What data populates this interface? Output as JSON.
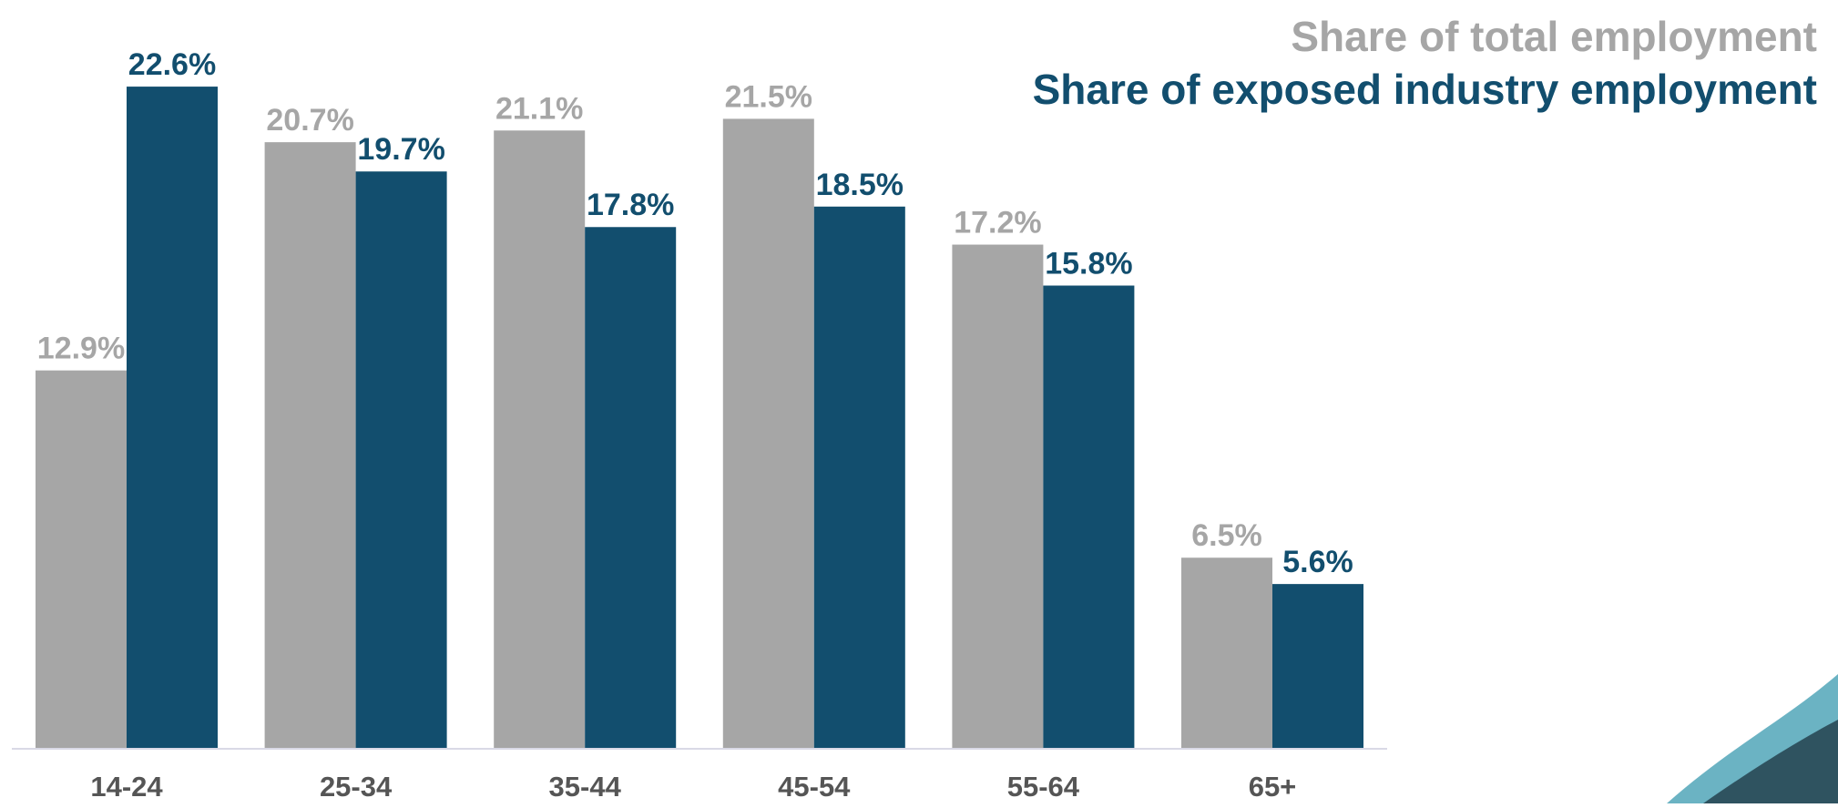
{
  "chart_data": {
    "type": "bar",
    "categories": [
      "14-24",
      "25-34",
      "35-44",
      "45-54",
      "55-64",
      "65+"
    ],
    "series": [
      {
        "name": "Share of total employment",
        "color": "#a6a6a6",
        "values": [
          12.9,
          20.7,
          21.1,
          21.5,
          17.2,
          6.5
        ],
        "value_labels": [
          "12.9%",
          "20.7%",
          "21.1%",
          "21.5%",
          "17.2%",
          "6.5%"
        ]
      },
      {
        "name": "Share of exposed industry employment",
        "color": "#124e6e",
        "values": [
          22.6,
          19.7,
          17.8,
          18.5,
          15.8,
          5.6
        ],
        "value_labels": [
          "22.6%",
          "19.7%",
          "17.8%",
          "18.5%",
          "15.8%",
          "5.6%"
        ]
      }
    ],
    "legend": "top-right"
  }
}
